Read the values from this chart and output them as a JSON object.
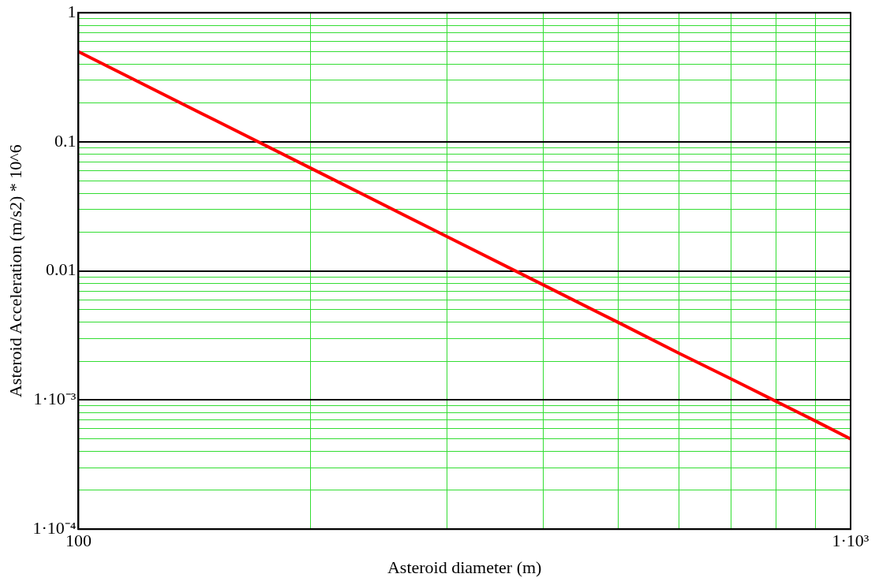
{
  "chart_data": {
    "type": "line",
    "xlabel": "Asteroid diameter (m)",
    "ylabel": "Asteroid Acceleration (m/s2) * 10^6",
    "log": "xy",
    "grid": true,
    "legend": false,
    "marker": "none",
    "line_style": "solid",
    "x": [
      100,
      150,
      200,
      300,
      400,
      500,
      600,
      700,
      800,
      900,
      1000
    ],
    "series": [
      {
        "color": "#ff0000",
        "values": [
          0.5,
          0.148,
          0.0625,
          0.0185,
          0.0078,
          0.004,
          0.0023,
          0.00146,
          0.00098,
          0.00069,
          0.0005
        ]
      }
    ],
    "xlim": [
      100,
      1000
    ],
    "xticks": [
      100,
      {
        "value": 200,
        "label": null
      },
      {
        "value": 300,
        "label": null
      },
      {
        "value": 400,
        "label": null
      },
      {
        "value": 500,
        "label": null
      },
      {
        "value": 600,
        "label": null
      },
      {
        "value": 700,
        "label": null
      },
      {
        "value": 800,
        "label": null
      },
      {
        "value": 900,
        "label": null
      },
      {
        "value": 1000,
        "label": "1·10³"
      }
    ],
    "ylim": [
      0.0001,
      1
    ],
    "yticks": [
      {
        "value": 0.0001,
        "label": "1·10⁻⁴"
      },
      {
        "value": 0.0002,
        "label": null
      },
      {
        "value": 0.0003,
        "label": null
      },
      {
        "value": 0.0004,
        "label": null
      },
      {
        "value": 0.0005,
        "label": null
      },
      {
        "value": 0.0006,
        "label": null
      },
      {
        "value": 0.0007,
        "label": null
      },
      {
        "value": 0.0008,
        "label": null
      },
      {
        "value": 0.0009,
        "label": null
      },
      {
        "value": 0.001,
        "label": "1·10⁻³"
      },
      {
        "value": 0.002,
        "label": null
      },
      {
        "value": 0.003,
        "label": null
      },
      {
        "value": 0.004,
        "label": null
      },
      {
        "value": 0.005,
        "label": null
      },
      {
        "value": 0.006,
        "label": null
      },
      {
        "value": 0.007,
        "label": null
      },
      {
        "value": 0.008,
        "label": null
      },
      {
        "value": 0.009,
        "label": null
      },
      0.01,
      {
        "value": 0.02,
        "label": null
      },
      {
        "value": 0.03,
        "label": null
      },
      {
        "value": 0.04,
        "label": null
      },
      {
        "value": 0.05,
        "label": null
      },
      {
        "value": 0.06,
        "label": null
      },
      {
        "value": 0.07,
        "label": null
      },
      {
        "value": 0.08,
        "label": null
      },
      {
        "value": 0.09,
        "label": null
      },
      0.1,
      {
        "value": 0.2,
        "label": null
      },
      {
        "value": 0.3,
        "label": null
      },
      {
        "value": 0.4,
        "label": null
      },
      {
        "value": 0.5,
        "label": null
      },
      {
        "value": 0.6,
        "label": null
      },
      {
        "value": 0.7,
        "label": null
      },
      {
        "value": 0.8,
        "label": null
      },
      {
        "value": 0.9,
        "label": null
      },
      1
    ]
  }
}
